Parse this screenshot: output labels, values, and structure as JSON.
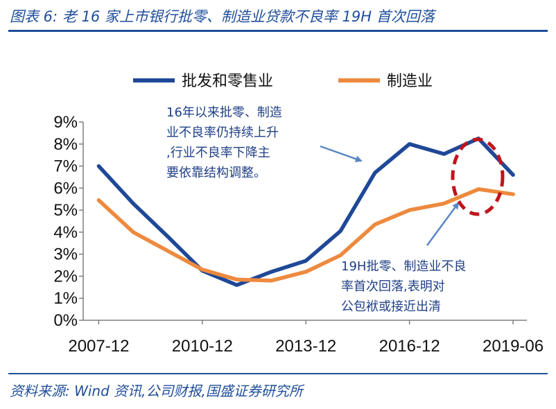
{
  "header": {
    "title": "图表 6:  老 16 家上市银行批零、制造业贷款不良率 19H 首次回落"
  },
  "footer": {
    "source": "资料来源:  Wind 资讯,公司财报,国盛证券研究所"
  },
  "colors": {
    "brand": "#1f4e9a",
    "series_wholesale_retail": "#1f4897",
    "series_manufacturing": "#ed8a3e",
    "highlight_ellipse": "#c0141b",
    "annotation_text": "#1f3f86",
    "arrow": "#5a86c5"
  },
  "chart_data": {
    "type": "line",
    "title": "老 16 家上市银行批零、制造业贷款不良率 19H 首次回落",
    "xlabel": "",
    "ylabel": "",
    "ylim": [
      0,
      9
    ],
    "yticks": [
      0,
      1,
      2,
      3,
      4,
      5,
      6,
      7,
      8,
      9
    ],
    "ytick_labels": [
      "0%",
      "1%",
      "2%",
      "3%",
      "4%",
      "5%",
      "6%",
      "7%",
      "8%",
      "9%"
    ],
    "x_tick_labels": [
      "2007-12",
      "2010-12",
      "2013-12",
      "2016-12",
      "2019-06"
    ],
    "x_tick_positions": [
      0,
      3,
      6,
      9,
      12
    ],
    "x": [
      0,
      1,
      2,
      3,
      4,
      5,
      6,
      7,
      8,
      9,
      10,
      11,
      12
    ],
    "x_range": [
      -0.45,
      12.4
    ],
    "grid": false,
    "legend": "top",
    "series": [
      {
        "name": "批发和零售业",
        "values": [
          7.0,
          5.3,
          3.8,
          2.25,
          1.6,
          2.2,
          2.7,
          4.05,
          6.7,
          8.0,
          7.55,
          8.25,
          6.6
        ]
      },
      {
        "name": "制造业",
        "values": [
          5.45,
          4.0,
          3.15,
          2.3,
          1.85,
          1.8,
          2.2,
          2.95,
          4.35,
          5.0,
          5.3,
          5.95,
          5.72
        ]
      }
    ],
    "annotations": [
      {
        "text_lines": [
          "16年以来批零、制造",
          "业不良率仍持续上升",
          ",行业不良率下降主",
          "要依靠结构调整。"
        ]
      },
      {
        "text_lines": [
          "19H批零、制造业不良",
          "率首次回落,表明对",
          "公包袱或接近出清"
        ]
      }
    ]
  }
}
